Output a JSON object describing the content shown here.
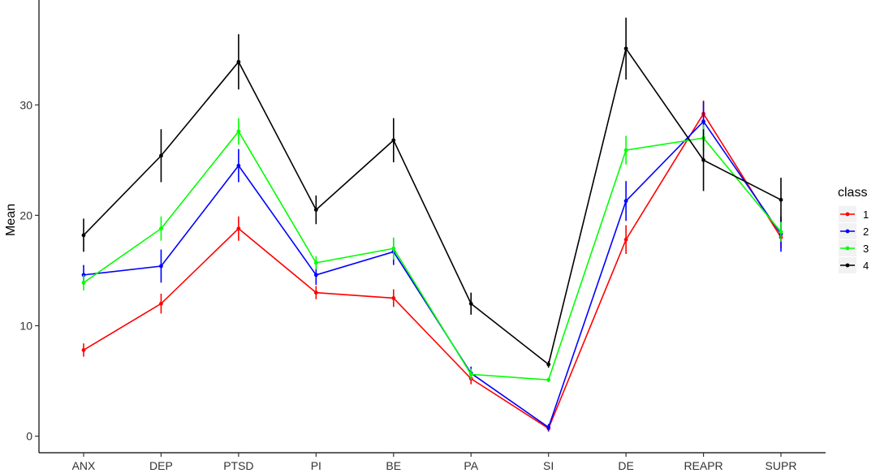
{
  "chart_data": {
    "type": "line",
    "title": "",
    "xlabel": "",
    "ylabel": "Mean",
    "categories": [
      "ANX",
      "DEP",
      "PTSD",
      "PI",
      "BE",
      "PA",
      "SI",
      "DE",
      "REAPR",
      "SUPR"
    ],
    "yticks": [
      0,
      10,
      20,
      30
    ],
    "ylim": [
      -1.5,
      39.5
    ],
    "grid": false,
    "legend": {
      "title": "class",
      "placement": "right"
    },
    "series": [
      {
        "name": "1",
        "color": "#ff0000",
        "values": [
          7.8,
          12.0,
          18.8,
          13.0,
          12.5,
          5.2,
          0.7,
          17.8,
          29.2,
          18.0
        ],
        "errors": [
          0.6,
          0.9,
          1.1,
          0.6,
          0.8,
          0.5,
          0.3,
          1.3,
          1.2,
          1.0
        ]
      },
      {
        "name": "2",
        "color": "#0000ff",
        "values": [
          14.6,
          15.4,
          24.5,
          14.6,
          16.7,
          5.7,
          0.8,
          21.3,
          28.5,
          18.3
        ],
        "errors": [
          0.9,
          1.5,
          1.5,
          0.9,
          1.2,
          0.6,
          0.3,
          1.8,
          1.8,
          1.6
        ]
      },
      {
        "name": "3",
        "color": "#00ff00",
        "values": [
          13.9,
          18.8,
          27.6,
          15.7,
          17.0,
          5.6,
          5.1,
          25.9,
          27.0,
          18.5
        ],
        "errors": [
          0.7,
          1.1,
          1.2,
          0.6,
          1.0,
          0.5,
          0.2,
          1.3,
          1.2,
          0.9
        ]
      },
      {
        "name": "4",
        "color": "#000000",
        "values": [
          18.2,
          25.4,
          33.9,
          20.5,
          26.8,
          12.0,
          6.5,
          35.1,
          25.0,
          21.4
        ],
        "errors": [
          1.5,
          2.4,
          2.5,
          1.3,
          2.0,
          1.0,
          0.3,
          2.8,
          2.8,
          2.0
        ]
      }
    ]
  }
}
